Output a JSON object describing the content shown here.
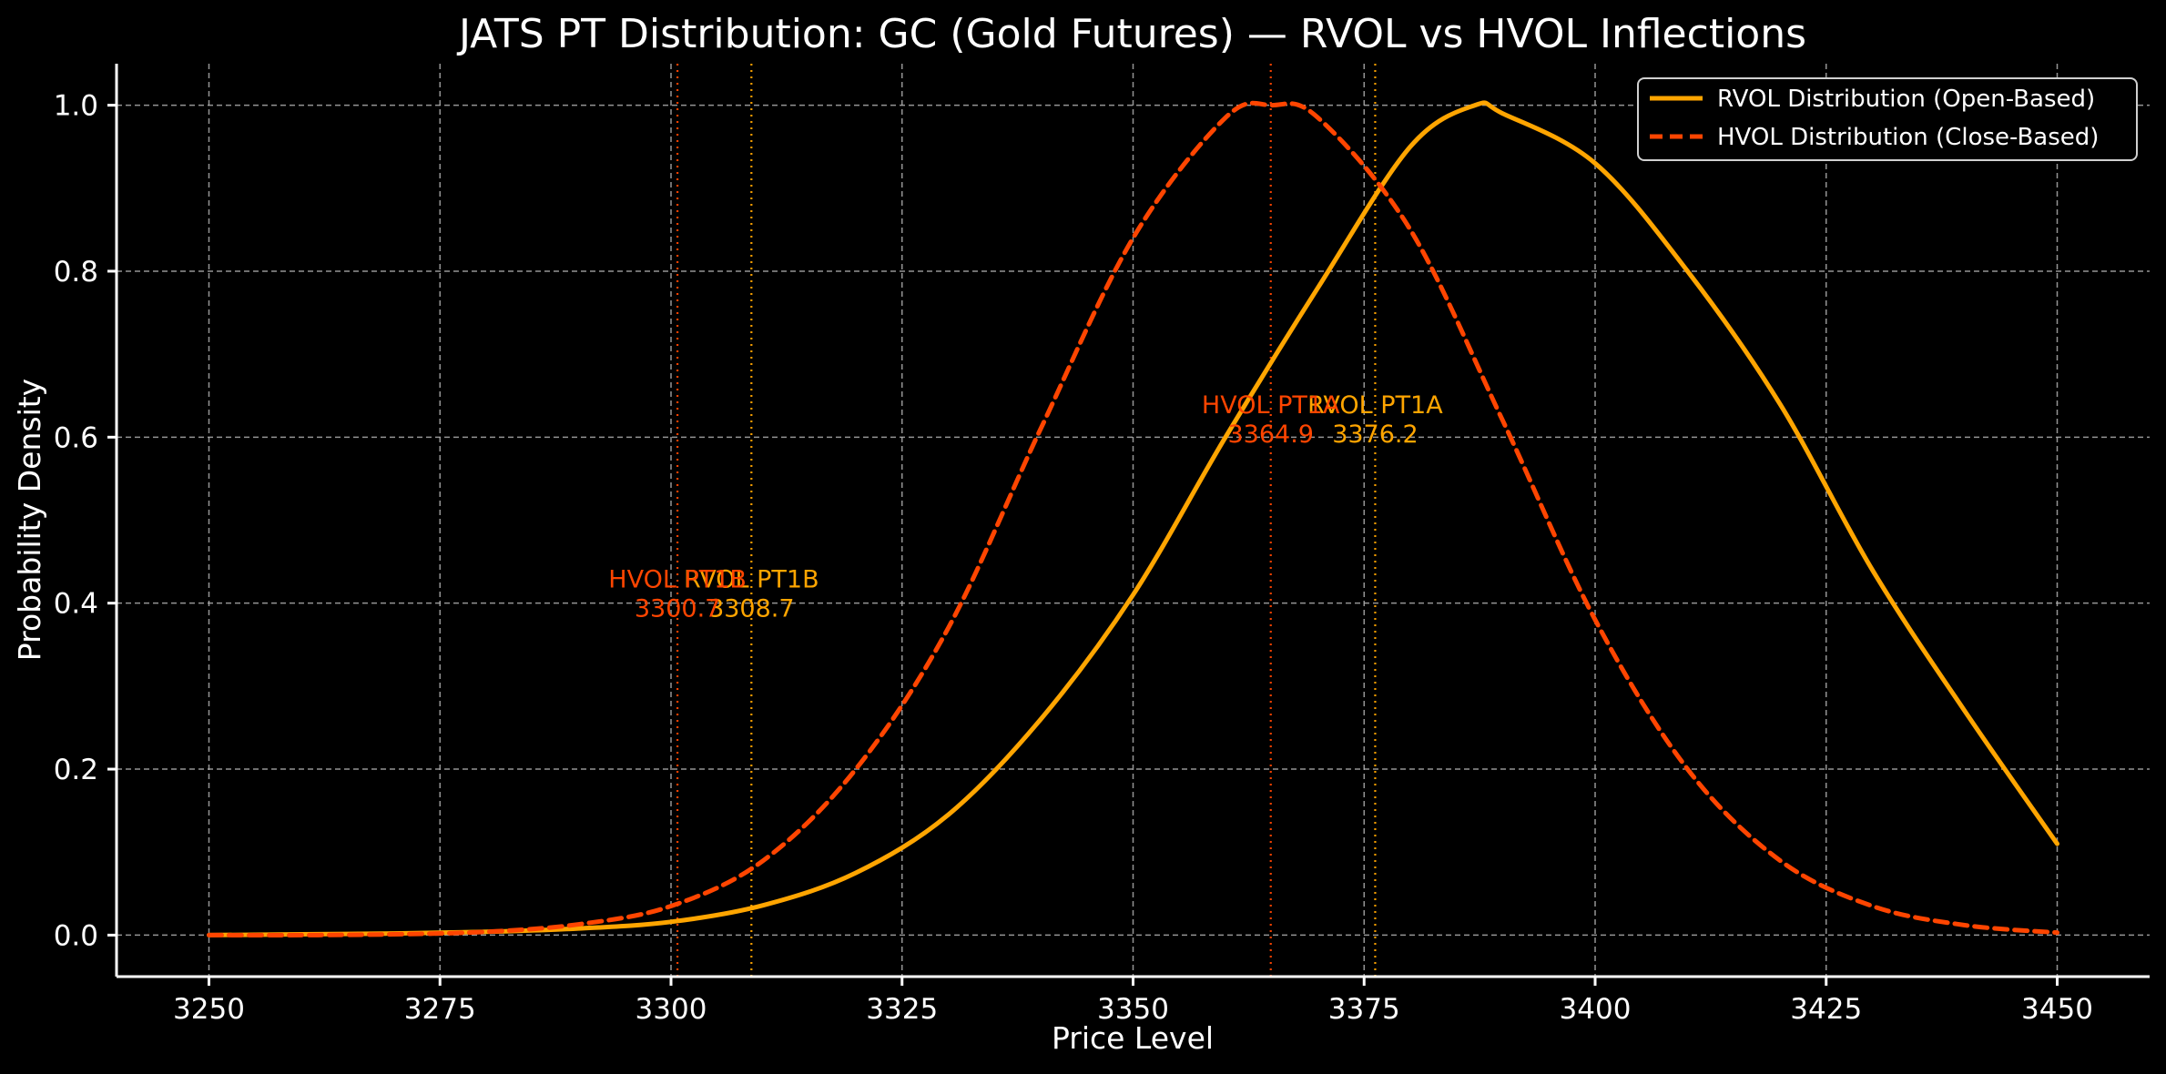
{
  "chart_data": {
    "type": "line",
    "title": "JATS PT Distribution: GC (Gold Futures) — RVOL vs HVOL Inflections",
    "xlabel": "Price Level",
    "ylabel": "Probability Density",
    "xlim": [
      3240,
      3460
    ],
    "ylim": [
      -0.05,
      1.05
    ],
    "x_ticks": [
      3250,
      3275,
      3300,
      3325,
      3350,
      3375,
      3400,
      3425,
      3450
    ],
    "x_tick_labels": [
      "3250",
      "3275",
      "3300",
      "3325",
      "3350",
      "3375",
      "3400",
      "3425",
      "3450"
    ],
    "y_ticks": [
      0.0,
      0.2,
      0.4,
      0.6,
      0.8,
      1.0
    ],
    "y_tick_labels": [
      "0.0",
      "0.2",
      "0.4",
      "0.6",
      "0.8",
      "1.0"
    ],
    "grid": true,
    "legend_position": "top-right",
    "colors": {
      "background": "#000000",
      "rvol": "#FFA500",
      "hvol": "#FF4500",
      "grid": "#b0b0b0",
      "axis": "#ffffff"
    },
    "series": [
      {
        "name": "RVOL Distribution (Open-Based)",
        "style": "solid",
        "color": "#FFA500",
        "x": [
          3250,
          3260,
          3270,
          3280,
          3290,
          3300,
          3310,
          3320,
          3330,
          3340,
          3350,
          3360,
          3370,
          3380,
          3387,
          3390,
          3400,
          3410,
          3420,
          3430,
          3440,
          3450
        ],
        "y": [
          0.0,
          0.001,
          0.002,
          0.004,
          0.008,
          0.016,
          0.036,
          0.075,
          0.145,
          0.26,
          0.41,
          0.6,
          0.78,
          0.95,
          1.0,
          0.99,
          0.93,
          0.8,
          0.64,
          0.44,
          0.27,
          0.11
        ]
      },
      {
        "name": "HVOL Distribution (Close-Based)",
        "style": "dashed",
        "color": "#FF4500",
        "x": [
          3250,
          3260,
          3270,
          3280,
          3290,
          3300,
          3310,
          3320,
          3330,
          3340,
          3350,
          3360,
          3365,
          3370,
          3380,
          3390,
          3400,
          3410,
          3420,
          3430,
          3440,
          3450
        ],
        "y": [
          0.0,
          0.0,
          0.001,
          0.004,
          0.013,
          0.035,
          0.09,
          0.2,
          0.37,
          0.61,
          0.84,
          0.985,
          1.0,
          0.985,
          0.85,
          0.62,
          0.38,
          0.2,
          0.09,
          0.035,
          0.012,
          0.003
        ]
      }
    ],
    "markers": [
      {
        "label": "RVOL PT1B",
        "value_text": "3308.7",
        "x": 3308.7,
        "text_y": 0.41,
        "color": "#FFA500"
      },
      {
        "label": "HVOL PT1B",
        "value_text": "3300.7",
        "x": 3300.7,
        "text_y": 0.41,
        "color": "#FF4500"
      },
      {
        "label": "RVOL PT1A",
        "value_text": "3376.2",
        "x": 3376.2,
        "text_y": 0.62,
        "color": "#FFA500"
      },
      {
        "label": "HVOL PT1A",
        "value_text": "3364.9",
        "x": 3364.9,
        "text_y": 0.62,
        "color": "#FF4500"
      }
    ]
  }
}
